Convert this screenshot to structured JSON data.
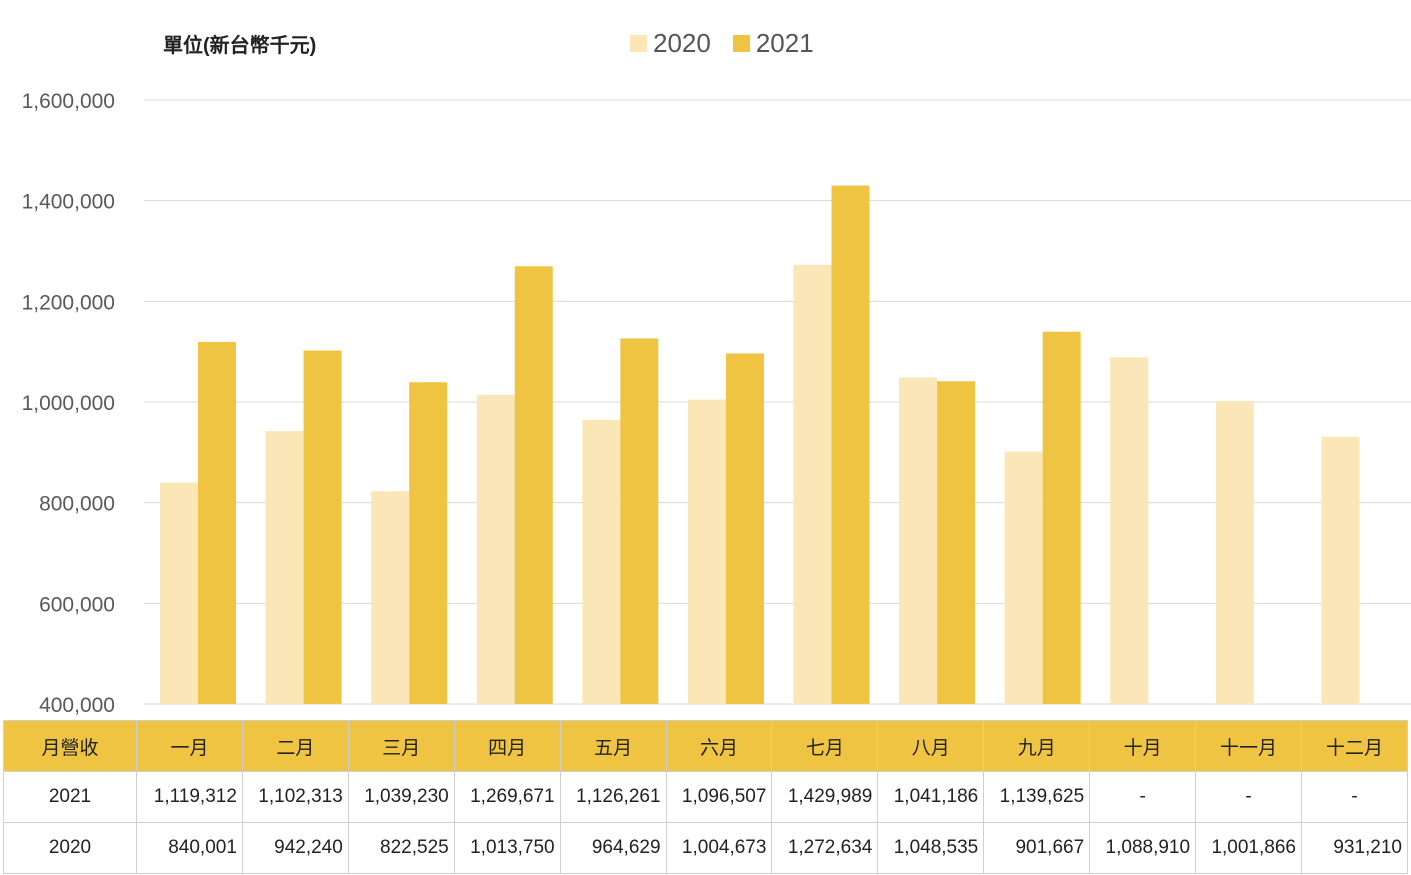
{
  "unit_label": "單位(新台幣千元)",
  "colors": {
    "series_2020": "#fae6b7",
    "series_2021": "#f0c443",
    "header_bg": "#f0c443",
    "grid": "#d9d9d9",
    "tick_text": "#595959"
  },
  "chart_data": {
    "type": "bar",
    "title": "",
    "xlabel": "",
    "ylabel": "",
    "categories": [
      "一月",
      "二月",
      "三月",
      "四月",
      "五月",
      "六月",
      "七月",
      "八月",
      "九月",
      "十月",
      "十一月",
      "十二月"
    ],
    "series": [
      {
        "name": "2020",
        "values": [
          840001,
          942240,
          822525,
          1013750,
          964629,
          1004673,
          1272634,
          1048535,
          901667,
          1088910,
          1001866,
          931210
        ]
      },
      {
        "name": "2021",
        "values": [
          1119312,
          1102313,
          1039230,
          1269671,
          1126261,
          1096507,
          1429989,
          1041186,
          1139625,
          null,
          null,
          null
        ]
      }
    ],
    "ylim": [
      400000,
      1600000
    ],
    "yticks": [
      "400,000",
      "600,000",
      "800,000",
      "1,000,000",
      "1,200,000",
      "1,400,000",
      "1,600,000"
    ],
    "ytick_values": [
      400000,
      600000,
      800000,
      1000000,
      1200000,
      1400000,
      1600000
    ],
    "grid": true,
    "legend_position": "top-center"
  },
  "table": {
    "header_label": "月營收",
    "rows": [
      {
        "label": "2021",
        "cells": [
          "1,119,312",
          "1,102,313",
          "1,039,230",
          "1,269,671",
          "1,126,261",
          "1,096,507",
          "1,429,989",
          "1,041,186",
          "1,139,625",
          "-",
          "-",
          "-"
        ]
      },
      {
        "label": "2020",
        "cells": [
          "840,001",
          "942,240",
          "822,525",
          "1,013,750",
          "964,629",
          "1,004,673",
          "1,272,634",
          "1,048,535",
          "901,667",
          "1,088,910",
          "1,001,866",
          "931,210"
        ]
      }
    ]
  }
}
